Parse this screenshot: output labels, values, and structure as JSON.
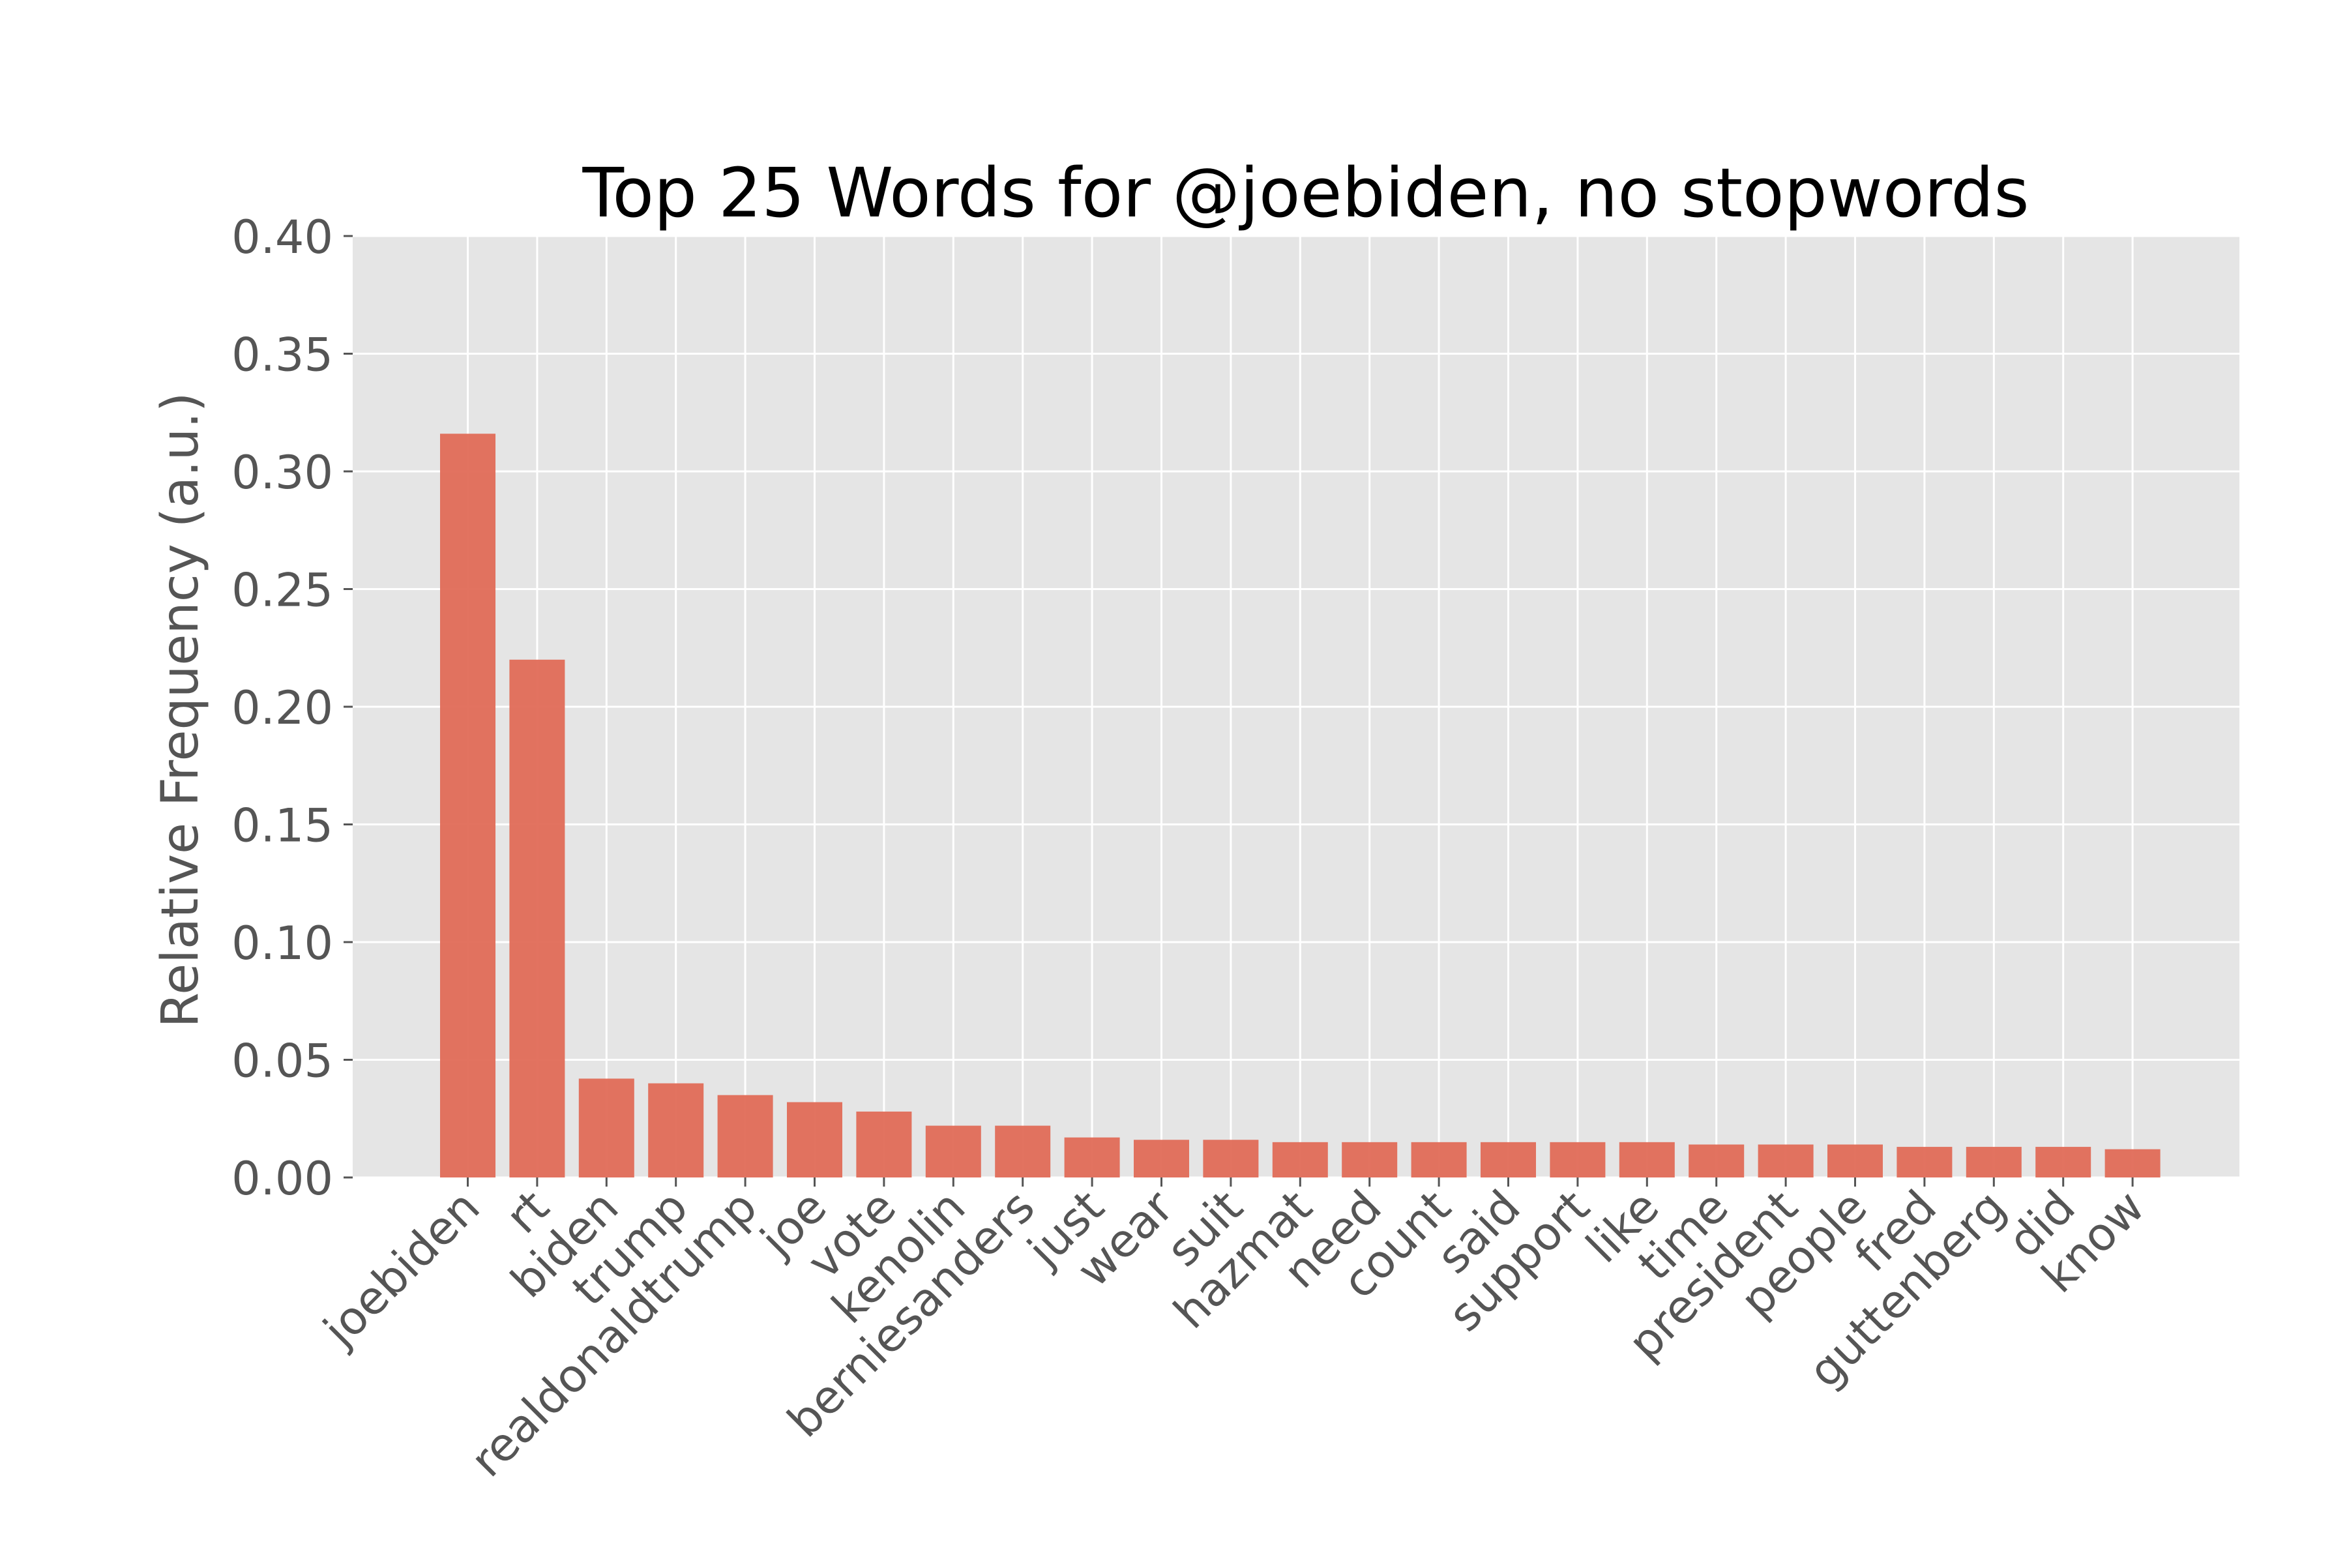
{
  "chart_data": {
    "type": "bar",
    "title": "Top 25 Words for @joebiden, no stopwords",
    "xlabel": "",
    "ylabel": "Relative Frequency (a.u.)",
    "ylim": [
      0,
      0.4
    ],
    "yticks": [
      "0.00",
      "0.05",
      "0.10",
      "0.15",
      "0.20",
      "0.25",
      "0.30",
      "0.35",
      "0.40"
    ],
    "grid": true,
    "legend": "none",
    "colors": {
      "bar": "#E06B57",
      "plot_background": "#E5E5E5",
      "grid": "#FFFFFF",
      "tick_text": "#555555",
      "title_text": "#000000"
    },
    "categories": [
      "joebiden",
      "rt",
      "biden",
      "trump",
      "realdonaldtrump",
      "joe",
      "vote",
      "kenolin",
      "berniesanders",
      "just",
      "wear",
      "suit",
      "hazmat",
      "need",
      "count",
      "said",
      "support",
      "like",
      "time",
      "president",
      "people",
      "fred",
      "guttenberg",
      "did",
      "know"
    ],
    "values": [
      0.316,
      0.22,
      0.042,
      0.04,
      0.035,
      0.032,
      0.028,
      0.022,
      0.022,
      0.017,
      0.016,
      0.016,
      0.015,
      0.015,
      0.015,
      0.015,
      0.015,
      0.015,
      0.014,
      0.014,
      0.014,
      0.013,
      0.013,
      0.013,
      0.012
    ]
  }
}
